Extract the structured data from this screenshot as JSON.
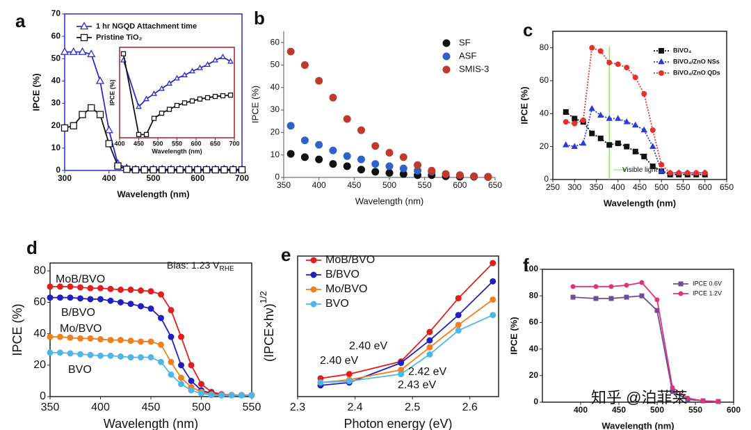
{
  "chart_data": [
    {
      "type": "line",
      "panel_label": "a",
      "xlabel": "Wavelength (nm)",
      "ylabel": "IPCE (%)",
      "xlim": [
        300,
        700
      ],
      "xticks": [
        300,
        400,
        500,
        600,
        700
      ],
      "ylim": [
        0,
        70
      ],
      "yticks": [
        0,
        10,
        20,
        30,
        40,
        50,
        60,
        70
      ],
      "legend": "upper left",
      "x": [
        300,
        320,
        340,
        360,
        380,
        400,
        420,
        440,
        460,
        480,
        500,
        520,
        540,
        560,
        580,
        600,
        620,
        640,
        660,
        680,
        700
      ],
      "series": [
        {
          "name": "1 hr NGQD Attachment time",
          "color": "#2a2ad0",
          "marker": "triangle",
          "filled": false,
          "values": [
            53,
            53,
            53,
            52,
            40,
            18,
            3,
            1,
            0.5,
            0.5,
            0.5,
            0.5,
            0.5,
            0.5,
            0.5,
            0.5,
            0.5,
            0.5,
            0.5,
            0.5,
            0.5
          ]
        },
        {
          "name": "Pristine TiO₂",
          "color": "#111111",
          "marker": "square",
          "filled": false,
          "values": [
            19,
            20,
            25,
            28,
            25,
            12,
            2,
            0.5,
            0.3,
            0.3,
            0.3,
            0.3,
            0.3,
            0.3,
            0.3,
            0.3,
            0.3,
            0.3,
            0.3,
            0.3,
            0.3
          ]
        }
      ]
    },
    {
      "type": "scatter",
      "panel_label": "b",
      "xlabel": "Wavelength (nm)",
      "ylabel": "IPCE (%)",
      "xlim": [
        350,
        650
      ],
      "xticks": [
        350,
        400,
        450,
        500,
        550,
        600,
        650
      ],
      "ylim": [
        0,
        65
      ],
      "yticks": [
        0,
        10,
        20,
        30,
        40,
        50,
        60
      ],
      "legend": "upper right",
      "x": [
        360,
        380,
        400,
        420,
        440,
        460,
        480,
        500,
        520,
        540,
        560,
        580,
        600,
        620,
        640
      ],
      "series": [
        {
          "name": "SF",
          "color": "#111111",
          "marker": "circle",
          "filled": true,
          "values": [
            10.5,
            9,
            8,
            6,
            5,
            3.5,
            2.5,
            2,
            1.5,
            1,
            1,
            0.5,
            0.3,
            0.3,
            0.2
          ]
        },
        {
          "name": "ASF",
          "color": "#2f62c9",
          "marker": "circle",
          "filled": true,
          "values": [
            23,
            16.5,
            14.5,
            12,
            9.5,
            8,
            6,
            5,
            4,
            3,
            2.5,
            1.5,
            1,
            0.5,
            0.3
          ]
        },
        {
          "name": "SMIS-3",
          "color": "#c0392b",
          "marker": "circle",
          "filled": true,
          "values": [
            56,
            50,
            43,
            35.5,
            26,
            21,
            14,
            11,
            9,
            5.5,
            3,
            1.5,
            1,
            0.5,
            0.3
          ]
        }
      ]
    },
    {
      "type": "line",
      "panel_label": "c",
      "xlabel": "Wavelength (nm)",
      "ylabel": "IPCE (%)",
      "xlim": [
        250,
        650
      ],
      "xticks": [
        250,
        300,
        350,
        400,
        450,
        500,
        550,
        600,
        650
      ],
      "ylim": [
        0,
        90
      ],
      "yticks": [
        0,
        20,
        40,
        60,
        80
      ],
      "legend": "upper right",
      "vline": 380,
      "vline_color": "#7ed957",
      "annotations": [
        {
          "text": "Visible light",
          "color": "#333333"
        }
      ],
      "x": [
        280,
        300,
        320,
        340,
        360,
        380,
        400,
        420,
        440,
        460,
        480,
        500,
        520,
        540,
        560,
        580,
        600
      ],
      "series": [
        {
          "name": "BiVO₄",
          "color": "#111111",
          "marker": "square",
          "filled": true,
          "linestyle": "dotted",
          "values": [
            41,
            37,
            35,
            28,
            25,
            21,
            22,
            20,
            17,
            14,
            8,
            5,
            3,
            3,
            3,
            3,
            3
          ]
        },
        {
          "name": "BiVO₄/ZnO NSs",
          "color": "#2a3bd8",
          "marker": "triangle",
          "filled": true,
          "linestyle": "dotted",
          "values": [
            21,
            20,
            22,
            43,
            39,
            37,
            37,
            35,
            33,
            30,
            20,
            5,
            4,
            4,
            4,
            4,
            4
          ]
        },
        {
          "name": "BiVO₄/ZnO QDs",
          "color": "#e8302a",
          "marker": "circle",
          "filled": true,
          "linestyle": "dotted",
          "values": [
            35,
            34,
            36,
            80,
            78,
            71,
            70,
            68,
            62,
            52,
            30,
            9,
            4,
            4,
            4,
            4,
            4
          ]
        }
      ]
    },
    {
      "type": "line",
      "panel_label": "d",
      "xlabel": "Wavelength (nm)",
      "ylabel": "IPCE (%)",
      "xlim": [
        350,
        550
      ],
      "xticks": [
        350,
        400,
        450,
        500,
        550
      ],
      "ylim": [
        0,
        85
      ],
      "yticks": [
        0,
        20,
        40,
        60,
        80
      ],
      "legend": "inline",
      "annotations": [
        {
          "text": "Bias: 1.23 V",
          "sub": "RHE",
          "color": "#111111"
        }
      ],
      "x": [
        350,
        360,
        370,
        380,
        390,
        400,
        410,
        420,
        430,
        440,
        450,
        460,
        470,
        480,
        490,
        500,
        510,
        520,
        530,
        540,
        550
      ],
      "series": [
        {
          "name": "MoB/BVO",
          "color": "#e01e1e",
          "marker": "circle",
          "filled": true,
          "values": [
            70,
            70,
            70,
            69.5,
            69,
            69,
            68.5,
            68,
            68,
            67.5,
            67,
            65,
            55,
            38,
            20,
            8,
            3,
            1.5,
            1,
            1,
            1
          ]
        },
        {
          "name": "B/BVO",
          "color": "#2020c0",
          "marker": "circle",
          "filled": true,
          "values": [
            63,
            63,
            63,
            62.5,
            62,
            62,
            61,
            60,
            59,
            57.5,
            56,
            50,
            38,
            20,
            10,
            4,
            2,
            1,
            1,
            0.8,
            0.8
          ]
        },
        {
          "name": "Mo/BVO",
          "color": "#f07f1e",
          "marker": "circle",
          "filled": true,
          "values": [
            38,
            38,
            37.5,
            37,
            37,
            36.5,
            36,
            36,
            35.5,
            35,
            35,
            33,
            22,
            12,
            6,
            3,
            1.5,
            1,
            1,
            1,
            1
          ]
        },
        {
          "name": "BVO",
          "color": "#4fb7e8",
          "marker": "circle",
          "filled": true,
          "values": [
            28,
            28,
            27.5,
            27,
            26.5,
            26,
            26,
            25.5,
            25,
            25,
            25,
            22,
            14,
            8,
            4,
            2,
            1,
            0.8,
            0.8,
            0.8,
            0.8
          ]
        }
      ]
    },
    {
      "type": "line",
      "panel_label": "e",
      "xlabel": "Photon energy (eV)",
      "ylabel": "(IPCE×hν)",
      "ylabel_sup": "1/2",
      "xlim": [
        2.3,
        2.65
      ],
      "xticks": [
        2.3,
        2.4,
        2.5,
        2.6
      ],
      "ylim": [
        0,
        100
      ],
      "legend": "upper left",
      "annotations": [
        {
          "text": "2.40 eV",
          "color": "#f07f1e"
        },
        {
          "text": "2.40 eV",
          "color": "#e01e1e"
        },
        {
          "text": "2.42 eV",
          "color": "#2020c0"
        },
        {
          "text": "2.43 eV",
          "color": "#4fb7e8"
        }
      ],
      "x": [
        2.34,
        2.39,
        2.48,
        2.53,
        2.58,
        2.64
      ],
      "series": [
        {
          "name": "MoB/BVO",
          "color": "#e01e1e",
          "marker": "circle",
          "filled": true,
          "values": [
            13,
            16,
            25,
            46,
            70,
            95
          ]
        },
        {
          "name": "B/BVO",
          "color": "#2020c0",
          "marker": "circle",
          "filled": true,
          "values": [
            8,
            10,
            24,
            40,
            58,
            82
          ]
        },
        {
          "name": "Mo/BVO",
          "color": "#f07f1e",
          "marker": "circle",
          "filled": true,
          "values": [
            10,
            12,
            19,
            35,
            51,
            69
          ]
        },
        {
          "name": "BVO",
          "color": "#4fb7e8",
          "marker": "circle",
          "filled": true,
          "values": [
            10,
            11,
            16,
            30,
            47,
            58
          ]
        }
      ]
    },
    {
      "type": "line",
      "panel_label": "f",
      "xlabel": "Wavelength (nm)",
      "ylabel": "IPCE (%)",
      "xlim": [
        350,
        600
      ],
      "xticks": [
        400,
        450,
        500,
        550,
        600
      ],
      "ylim": [
        0,
        100
      ],
      "yticks": [
        0,
        20,
        40,
        60,
        80,
        100
      ],
      "legend": "upper right",
      "annotations": [
        {
          "text": "知乎 @泊菲莱",
          "color": "#cccccc"
        }
      ],
      "x": [
        390,
        420,
        440,
        460,
        480,
        500,
        520,
        540,
        560,
        580
      ],
      "series": [
        {
          "name": "IPCE 0.6V",
          "color": "#6b4f9a",
          "marker": "square",
          "filled": true,
          "values": [
            79,
            78,
            78,
            79,
            80,
            69,
            8,
            2,
            1,
            0.5
          ]
        },
        {
          "name": "IPCE 1.2V",
          "color": "#e0337a",
          "marker": "circle",
          "filled": true,
          "values": [
            87,
            87,
            87,
            88,
            90,
            77,
            11,
            3,
            1,
            0.5
          ]
        }
      ]
    },
    {
      "type": "line",
      "xlabel": "Wavelength (nm)",
      "ylabel": "IPCE (%)",
      "xlim": [
        400,
        700
      ],
      "xticks": [
        400,
        450,
        500,
        550,
        600,
        650,
        700
      ],
      "ylim": [
        0,
        1.4
      ],
      "x": [
        410,
        450,
        470,
        490,
        510,
        530,
        550,
        570,
        590,
        610,
        630,
        650,
        670,
        690
      ],
      "series": [
        {
          "name": "1 hr NGQD Attachment time",
          "color": "#2a2ad0",
          "marker": "triangle",
          "filled": false,
          "values": [
            1.2,
            0.48,
            0.6,
            0.68,
            0.76,
            0.84,
            0.92,
            0.97,
            1.03,
            1.08,
            1.13,
            1.2,
            1.25,
            1.18
          ]
        },
        {
          "name": "Pristine TiO₂",
          "color": "#111111",
          "marker": "square",
          "filled": false,
          "values": [
            1.3,
            0.05,
            0.05,
            0.3,
            0.38,
            0.44,
            0.5,
            0.54,
            0.57,
            0.6,
            0.62,
            0.64,
            0.65,
            0.66
          ]
        }
      ]
    }
  ]
}
